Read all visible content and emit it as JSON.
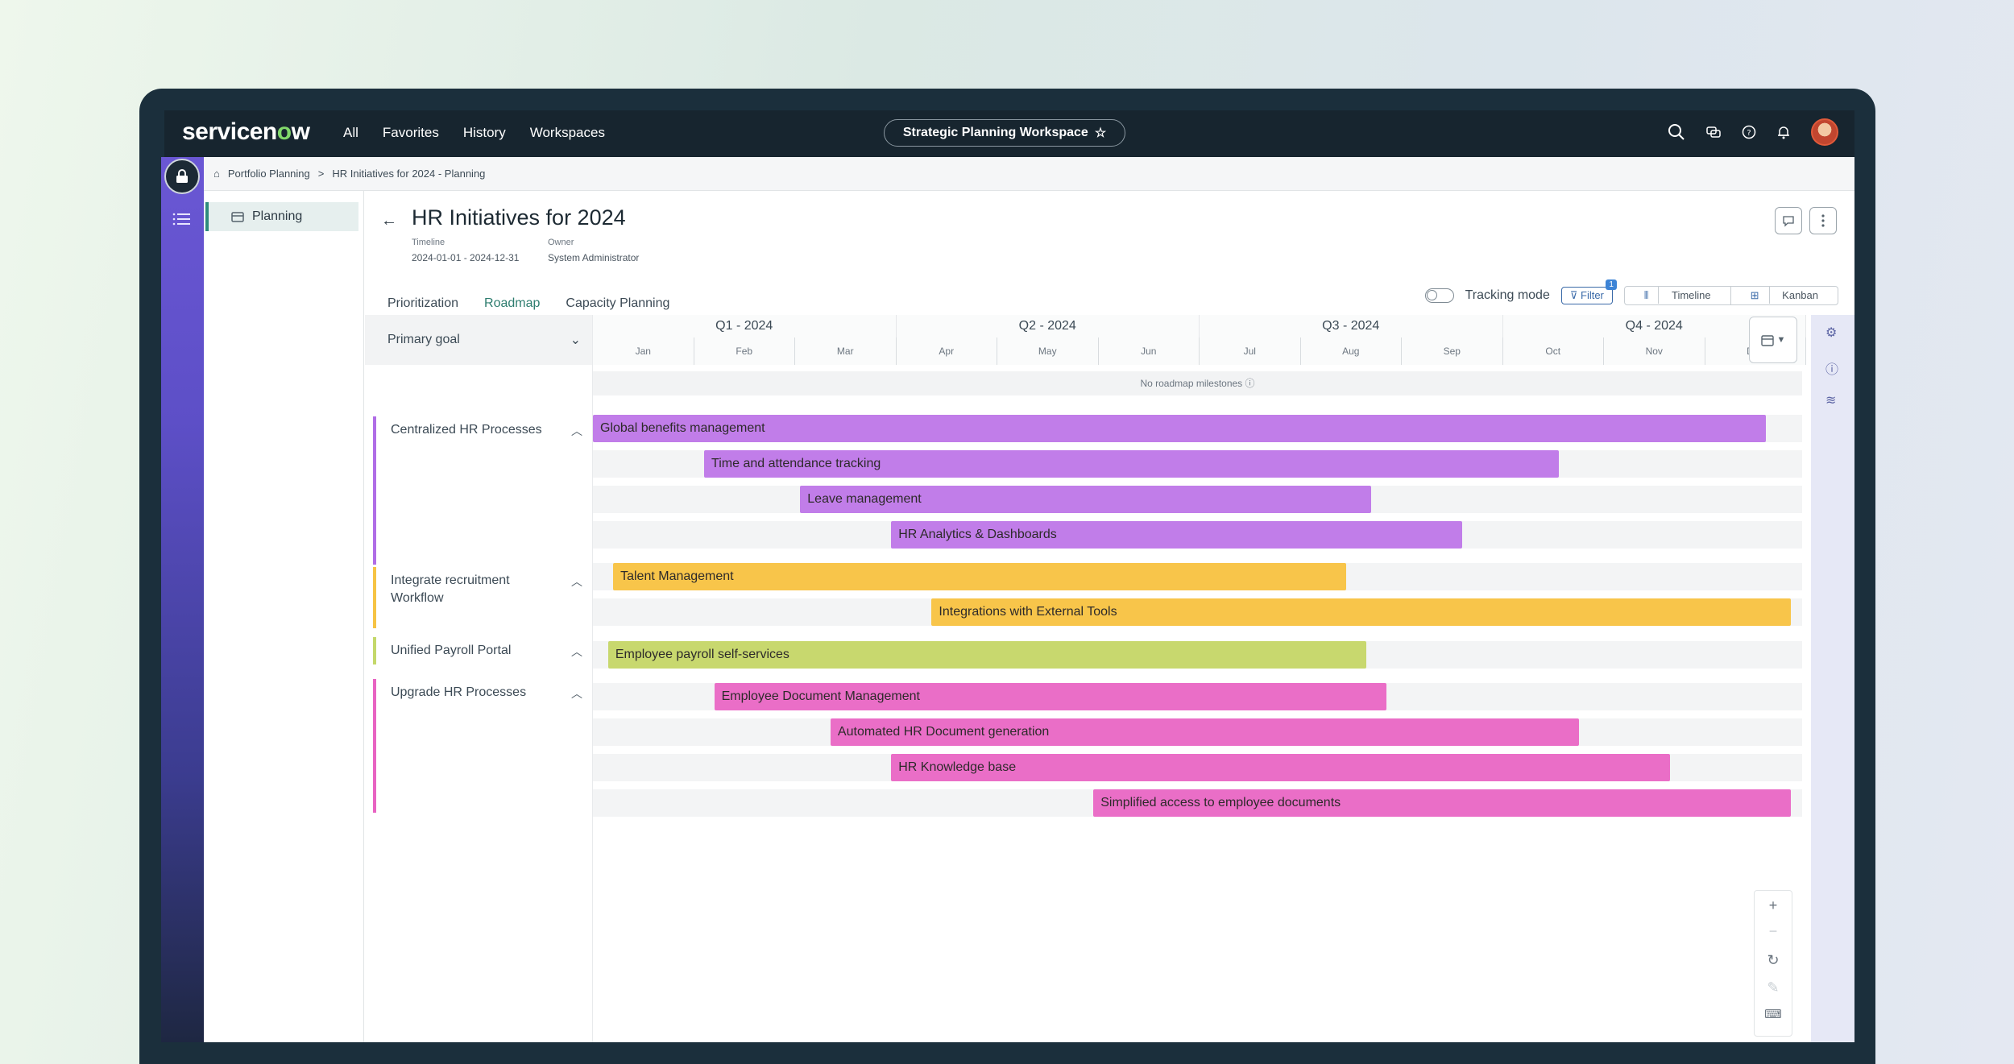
{
  "topbar": {
    "logo_text_a": "servicen",
    "logo_text_o": "o",
    "logo_text_b": "w",
    "nav": [
      "All",
      "Favorites",
      "History",
      "Workspaces"
    ],
    "workspace": "Strategic Planning Workspace"
  },
  "breadcrumb": {
    "root": "Portfolio Planning",
    "separator": ">",
    "current": "HR Initiatives for 2024 - Planning"
  },
  "sidenav": {
    "item": "Planning"
  },
  "page": {
    "title": "HR Initiatives for 2024",
    "timeline_label": "Timeline",
    "timeline_value": "2024-01-01 - 2024-12-31",
    "owner_label": "Owner",
    "owner_value": "System Administrator"
  },
  "tabs": [
    "Prioritization",
    "Roadmap",
    "Capacity Planning"
  ],
  "controls": {
    "tracking_mode": "Tracking mode",
    "filter": "Filter",
    "filter_count": "1",
    "timeline": "Timeline",
    "kanban": "Kanban"
  },
  "goal_header": "Primary goal",
  "goals": [
    {
      "label": "Centralized HR Processes",
      "color": "#b06de6"
    },
    {
      "label": "Integrate recruitment Workflow",
      "color": "#f6c344"
    },
    {
      "label": "Unified Payroll Portal",
      "color": "#c4d86a"
    },
    {
      "label": "Upgrade HR Processes",
      "color": "#e863c2"
    }
  ],
  "quarters": [
    "Q1 - 2024",
    "Q2 - 2024",
    "Q3 - 2024",
    "Q4 - 2024"
  ],
  "months": [
    "Jan",
    "Feb",
    "Mar",
    "Apr",
    "May",
    "Jun",
    "Jul",
    "Aug",
    "Sep",
    "Oct",
    "Nov",
    "Dec"
  ],
  "milestones_text": "No roadmap milestones",
  "chart_data": {
    "type": "gantt",
    "x_unit": "month (0 = start of Jan 2024, 12 = end of Dec 2024)",
    "tasks": [
      {
        "name": "Global benefits management",
        "goal": "Centralized HR Processes",
        "start": 0.0,
        "end": 11.6,
        "color": "#c17de9"
      },
      {
        "name": "Time and attendance tracking",
        "goal": "Centralized HR Processes",
        "start": 1.1,
        "end": 9.55,
        "color": "#c17de9"
      },
      {
        "name": "Leave management",
        "goal": "Centralized HR Processes",
        "start": 2.05,
        "end": 7.7,
        "color": "#c17de9"
      },
      {
        "name": "HR Analytics & Dashboards",
        "goal": "Centralized HR Processes",
        "start": 2.95,
        "end": 8.6,
        "color": "#c17de9"
      },
      {
        "name": "Talent Management",
        "goal": "Integrate recruitment Workflow",
        "start": 0.2,
        "end": 7.45,
        "color": "#f8c54a"
      },
      {
        "name": "Integrations with External Tools",
        "goal": "Integrate recruitment Workflow",
        "start": 3.35,
        "end": 11.85,
        "color": "#f8c54a"
      },
      {
        "name": "Employee payroll self-services",
        "goal": "Unified Payroll Portal",
        "start": 0.15,
        "end": 7.65,
        "color": "#c8d86e"
      },
      {
        "name": "Employee Document Management",
        "goal": "Upgrade HR Processes",
        "start": 1.2,
        "end": 7.85,
        "color": "#ea6ec7"
      },
      {
        "name": "Automated HR Document generation",
        "goal": "Upgrade HR Processes",
        "start": 2.35,
        "end": 9.75,
        "color": "#ea6ec7"
      },
      {
        "name": "HR Knowledge base",
        "goal": "Upgrade HR Processes",
        "start": 2.95,
        "end": 10.65,
        "color": "#ea6ec7"
      },
      {
        "name": "Simplified access to employee documents",
        "goal": "Upgrade HR Processes",
        "start": 4.95,
        "end": 11.85,
        "color": "#ea6ec7"
      }
    ]
  }
}
